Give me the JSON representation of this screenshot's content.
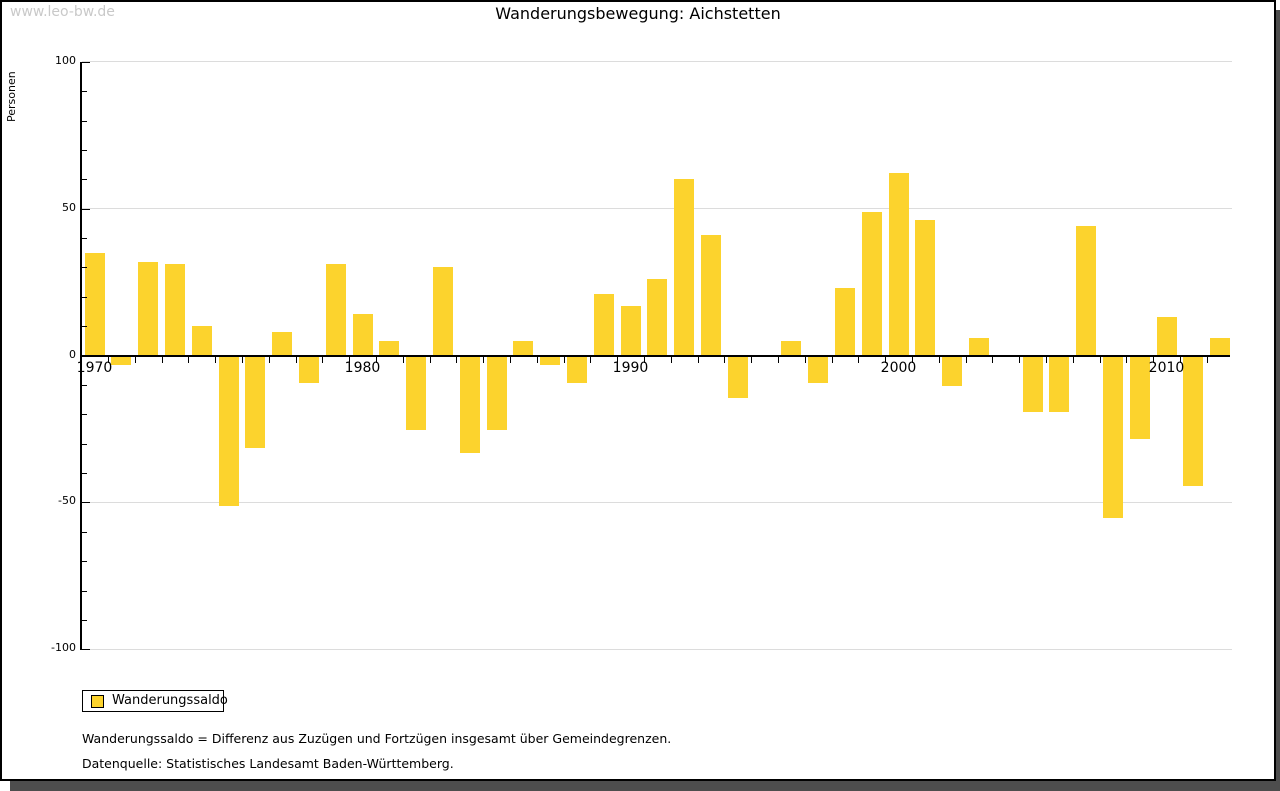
{
  "window": {
    "watermark": "www.leo-bw.de",
    "title": "Wanderungsbewegung: Aichstetten"
  },
  "chart_data": {
    "type": "bar",
    "title": "Wanderungsbewegung: Aichstetten",
    "xlabel": "",
    "ylabel": "Personen",
    "ylim": [
      -100,
      100
    ],
    "yticks_labeled": [
      100,
      50,
      0,
      -50,
      -100
    ],
    "ytick_minor_step": 10,
    "gridlines_at": [
      100,
      50,
      -50,
      -100
    ],
    "grid": "horizontal-only",
    "legend_position": "bottom-left",
    "bar_color": "#fcd32d",
    "xticks_labeled": [
      1970,
      1980,
      1990,
      2000,
      2010
    ],
    "years": [
      1970,
      1971,
      1972,
      1973,
      1974,
      1975,
      1976,
      1977,
      1978,
      1979,
      1980,
      1981,
      1982,
      1983,
      1984,
      1985,
      1986,
      1987,
      1988,
      1989,
      1990,
      1991,
      1992,
      1993,
      1994,
      1995,
      1996,
      1997,
      1998,
      1999,
      2000,
      2001,
      2002,
      2003,
      2004,
      2005,
      2006,
      2007,
      2008,
      2009,
      2010,
      2011,
      2012
    ],
    "series": [
      {
        "name": "Wanderungssaldo",
        "values": [
          35,
          -3,
          32,
          31,
          10,
          -51,
          -31,
          8,
          -9,
          31,
          14,
          5,
          -25,
          30,
          -33,
          -25,
          5,
          -3,
          -9,
          21,
          17,
          26,
          60,
          41,
          -14,
          0,
          5,
          -9,
          23,
          49,
          62,
          46,
          -10,
          6,
          0,
          -19,
          -19,
          44,
          -55,
          -28,
          13,
          -44,
          6
        ]
      }
    ]
  },
  "legend": {
    "items": [
      {
        "label": "Wanderungssaldo",
        "swatch_color": "#fcd32d"
      }
    ]
  },
  "footnotes": [
    "Wanderungssaldo = Differenz aus Zuzügen und Fortzügen insgesamt über Gemeindegrenzen.",
    "Datenquelle: Statistisches Landesamt Baden-Württemberg."
  ]
}
